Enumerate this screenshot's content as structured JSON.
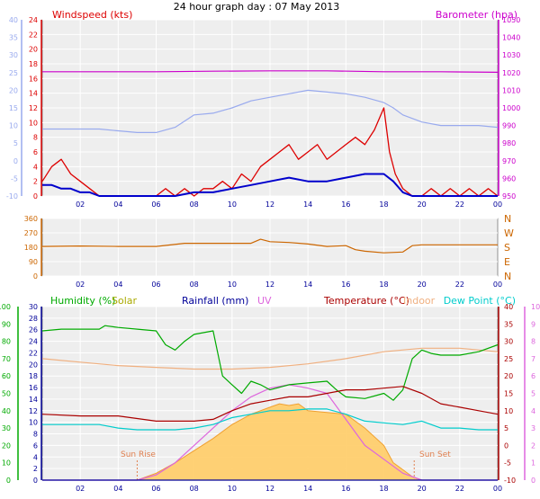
{
  "title": "24 hour graph day : 07 May 2013",
  "x_ticks": [
    "02",
    "04",
    "06",
    "08",
    "10",
    "12",
    "14",
    "16",
    "18",
    "20",
    "22",
    "00"
  ],
  "colors": {
    "windspeed": "#dd0000",
    "windavg": "#0000cc",
    "barometer": "#cc00cc",
    "temp_left": "#99aaee",
    "humidity": "#00aa00",
    "solar": "#aaaa00",
    "rainfall": "#000099",
    "uv": "#dd66dd",
    "temperature": "#aa0000",
    "indoor": "#f0b080",
    "dewpoint": "#00cccc",
    "winddir": "#cc6600"
  },
  "chart_data": [
    {
      "type": "line",
      "labels": {
        "windspeed": "Windspeed (kts)",
        "barometer": "Barometer (hpa)"
      },
      "left_outer_axis": {
        "ylim": [
          -10,
          40
        ],
        "ticks": [
          "-10",
          "-5",
          "0",
          "5",
          "10",
          "15",
          "20",
          "25",
          "30",
          "35",
          "40"
        ]
      },
      "left_axis": {
        "ylim": [
          0,
          24
        ],
        "ticks": [
          "0",
          "2",
          "4",
          "6",
          "8",
          "10",
          "12",
          "14",
          "16",
          "18",
          "20",
          "22",
          "24"
        ]
      },
      "right_axis": {
        "ylim": [
          950,
          1050
        ],
        "ticks": [
          "950",
          "960",
          "970",
          "980",
          "990",
          "1000",
          "1010",
          "1020",
          "1030",
          "1040",
          "1050"
        ]
      },
      "series": [
        {
          "key": "barometer",
          "axis": "right",
          "x": [
            0,
            3,
            6,
            9,
            12,
            15,
            18,
            21,
            24
          ],
          "y": [
            1020.5,
            1020.5,
            1020.5,
            1020.8,
            1021,
            1021,
            1020.5,
            1020.5,
            1020.2
          ]
        },
        {
          "key": "temp_left",
          "axis": "left_outer",
          "x": [
            0,
            1,
            2,
            3,
            4,
            5,
            6,
            7,
            8,
            9,
            10,
            11,
            12,
            13,
            14,
            15,
            16,
            17,
            18,
            18.5,
            19,
            20,
            21,
            22,
            23,
            24
          ],
          "y": [
            9,
            9,
            9,
            9,
            8.5,
            8,
            8,
            9.5,
            13,
            13.5,
            15,
            17,
            18,
            19,
            20,
            19.5,
            19,
            18,
            16.5,
            15,
            13,
            11,
            10,
            10,
            10,
            9.5
          ]
        },
        {
          "key": "windspeed",
          "axis": "left",
          "x": [
            0,
            0.5,
            1,
            1.5,
            2,
            2.5,
            3,
            3.5,
            4,
            4.5,
            5,
            5.5,
            6,
            6.5,
            7,
            7.5,
            8,
            8.5,
            9,
            9.5,
            10,
            10.5,
            11,
            11.5,
            12,
            12.5,
            13,
            13.5,
            14,
            14.5,
            15,
            15.5,
            16,
            16.5,
            17,
            17.5,
            18,
            18.3,
            18.6,
            19,
            19.5,
            20,
            20.5,
            21,
            21.5,
            22,
            22.5,
            23,
            23.5,
            24
          ],
          "y": [
            2,
            4,
            5,
            3,
            2,
            1,
            0,
            0,
            0,
            0,
            0,
            0,
            0,
            1,
            0,
            1,
            0,
            1,
            1,
            2,
            1,
            3,
            2,
            4,
            5,
            6,
            7,
            5,
            6,
            7,
            5,
            6,
            7,
            8,
            7,
            9,
            12,
            6,
            3,
            1,
            0,
            0,
            1,
            0,
            1,
            0,
            1,
            0,
            1,
            0
          ]
        },
        {
          "key": "windavg",
          "axis": "left",
          "x": [
            0,
            0.5,
            1,
            1.5,
            2,
            2.5,
            3,
            4,
            5,
            6,
            7,
            8,
            9,
            10,
            11,
            12,
            13,
            14,
            15,
            16,
            17,
            18,
            18.5,
            19,
            19.5,
            20,
            21,
            22,
            23,
            24
          ],
          "y": [
            1.5,
            1.5,
            1,
            1,
            0.5,
            0.5,
            0,
            0,
            0,
            0,
            0,
            0.5,
            0.5,
            1,
            1.5,
            2,
            2.5,
            2,
            2,
            2.5,
            3,
            3,
            2,
            0.5,
            0,
            0,
            0,
            0,
            0,
            0
          ]
        }
      ]
    },
    {
      "type": "line",
      "left_axis": {
        "ylim": [
          0,
          360
        ],
        "ticks": [
          "0",
          "90",
          "180",
          "270",
          "360"
        ]
      },
      "direction_labels": [
        "N",
        "W",
        "S",
        "E",
        "N"
      ],
      "series": [
        {
          "key": "winddir",
          "axis": "left",
          "x": [
            0,
            2,
            4,
            6,
            7.5,
            9,
            10,
            11,
            11.5,
            12,
            13,
            14,
            15,
            16,
            16.5,
            17,
            18,
            19,
            19.5,
            20,
            22,
            24
          ],
          "y": [
            185,
            188,
            185,
            185,
            205,
            205,
            205,
            205,
            230,
            215,
            210,
            200,
            185,
            190,
            165,
            155,
            145,
            150,
            190,
            195,
            195,
            195
          ]
        }
      ]
    },
    {
      "type": "line",
      "labels": {
        "humidity": "Humidity (%)",
        "solar": "Solar",
        "rainfall": "Rainfall (mm)",
        "uv": "UV",
        "temperature": "Temperature (°C)",
        "indoor": "Indoor",
        "dewpoint": "Dew Point (°C)"
      },
      "annotations": [
        "Sun Rise",
        "Sun Set"
      ],
      "axis_humidity": {
        "ylim": [
          0,
          100
        ],
        "ticks": [
          "0",
          "10",
          "20",
          "30",
          "40",
          "50",
          "60",
          "70",
          "80",
          "90",
          "100"
        ]
      },
      "axis_rain": {
        "ylim": [
          0,
          30
        ],
        "ticks": [
          "0",
          "2",
          "4",
          "6",
          "8",
          "10",
          "12",
          "14",
          "16",
          "18",
          "20",
          "22",
          "24",
          "26",
          "28",
          "30"
        ]
      },
      "axis_temp": {
        "ylim": [
          -10,
          40
        ],
        "ticks": [
          "-10",
          "-5",
          "0",
          "5",
          "10",
          "15",
          "20",
          "25",
          "30",
          "35",
          "40"
        ]
      },
      "axis_uv": {
        "ylim": [
          0,
          10
        ],
        "ticks": [
          "0",
          "1",
          "2",
          "3",
          "4",
          "5",
          "6",
          "7",
          "8",
          "9",
          "10"
        ]
      },
      "series": [
        {
          "key": "solar",
          "axis": "humidity",
          "fill": true,
          "x": [
            5,
            6,
            7,
            8,
            9,
            10,
            11,
            12,
            12.5,
            13,
            13.5,
            14,
            15,
            16,
            17,
            18,
            18.5,
            19,
            19.5,
            20
          ],
          "y": [
            0,
            4,
            10,
            17,
            24,
            32,
            38,
            42,
            44,
            43,
            44,
            40,
            39,
            38,
            30,
            20,
            10,
            6,
            2,
            0
          ]
        },
        {
          "key": "uv",
          "axis": "uv",
          "x": [
            0,
            1,
            2,
            3,
            5,
            6,
            7,
            8,
            9,
            10,
            11,
            12,
            13,
            14,
            15,
            16,
            17,
            18,
            19,
            20,
            21,
            24
          ],
          "y": [
            0,
            0,
            0,
            0,
            0,
            0.3,
            1,
            2,
            3,
            4,
            4.8,
            5.3,
            5.5,
            5.3,
            5,
            3.5,
            2,
            1.2,
            0.4,
            0,
            0,
            0
          ]
        },
        {
          "key": "indoor",
          "axis": "temp",
          "x": [
            0,
            2,
            4,
            6,
            8,
            10,
            12,
            14,
            16,
            18,
            20,
            22,
            24
          ],
          "y": [
            25,
            24,
            23,
            22.5,
            22,
            22,
            22.5,
            23.5,
            25,
            27,
            28,
            28,
            27
          ]
        },
        {
          "key": "humidity",
          "axis": "humidity",
          "x": [
            0,
            1,
            2,
            3,
            3.3,
            4,
            5,
            6,
            6.5,
            7,
            7.5,
            8,
            9,
            9.5,
            10,
            10.5,
            11,
            11.5,
            12,
            13,
            14,
            15,
            15.5,
            16,
            17,
            18,
            18.5,
            19,
            19.5,
            20,
            20.5,
            21,
            22,
            23,
            24
          ],
          "y": [
            86,
            87,
            87,
            87,
            89,
            88,
            87,
            86,
            78,
            75,
            80,
            84,
            86,
            60,
            55,
            50,
            57,
            55,
            52,
            55,
            56,
            57,
            52,
            48,
            47,
            50,
            46,
            52,
            70,
            75,
            73,
            72,
            72,
            74,
            78
          ]
        },
        {
          "key": "temperature",
          "axis": "temp",
          "x": [
            0,
            2,
            4,
            6,
            7,
            8,
            9,
            10,
            11,
            12,
            13,
            14,
            15,
            16,
            17,
            18,
            19,
            20,
            21,
            22,
            23,
            24
          ],
          "y": [
            9,
            8.5,
            8.5,
            7,
            7,
            7,
            7.5,
            10,
            12,
            13,
            14,
            14,
            15,
            16,
            16,
            16.5,
            17,
            15,
            12,
            11,
            10,
            9
          ]
        },
        {
          "key": "dewpoint",
          "axis": "temp",
          "x": [
            0,
            1,
            2,
            3,
            4,
            5,
            6,
            7,
            8,
            9,
            10,
            11,
            12,
            13,
            14,
            15,
            16,
            17,
            18,
            19,
            20,
            21,
            22,
            23,
            24
          ],
          "y": [
            6,
            6,
            6,
            6,
            5,
            4.5,
            4.5,
            4.5,
            5,
            6,
            8,
            9,
            10,
            10,
            10.5,
            10.5,
            9,
            7,
            6.5,
            6,
            7,
            5,
            5,
            4.5,
            4.5
          ]
        },
        {
          "key": "rainfall",
          "axis": "rain",
          "x": [
            0,
            24
          ],
          "y": [
            0,
            0
          ]
        }
      ]
    }
  ]
}
